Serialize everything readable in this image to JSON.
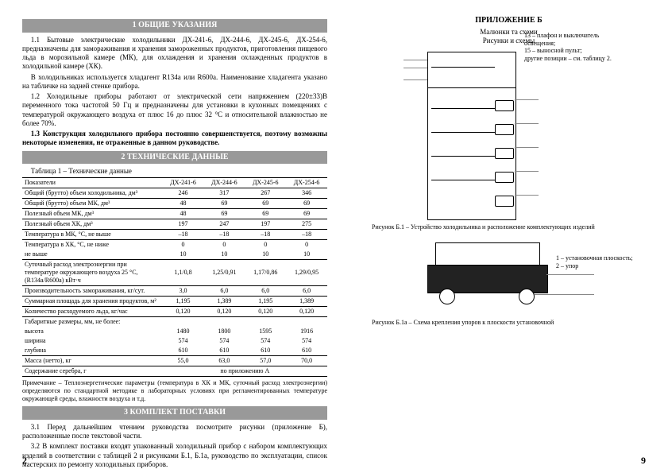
{
  "left": {
    "sec1_title": "1  ОБЩИЕ УКАЗАНИЯ",
    "p1": "1.1 Бытовые электрические холодильники ДХ-241-6, ДХ-244-6, ДХ-245-6, ДХ-254-6, предназначены для замораживания и хранения замороженных продуктов, приготовления пищевого льда в морозильной камере (МК), для охлаждения и хранения охлажденных продуктов в холодильной камере (ХК).",
    "p2": "В холодильниках используется хладагент R134a или R600a. Наименование хладагента указано на табличке на задней стенке прибора.",
    "p3": "1.2 Холодильные приборы работают от электрической сети напряжением (220±33)В переменного тока частотой 50 Гц и предназначены для установки в кухонных помещениях с температурой окружающего воздуха от плюс 16 до плюс 32 °С и относительной влажностью не более 70%.",
    "p4": "1.3 Конструкция холодильного прибора постоянно совершенствуется, поэтому возможны некоторые изменения, не отраженные в данном руководстве.",
    "sec2_title": "2  ТЕХНИЧЕСКИЕ ДАННЫЕ",
    "tbl_caption": "Таблица 1 – Технические данные",
    "cols": [
      "Показатели",
      "ДХ-241-6",
      "ДХ-244-6",
      "ДХ-245-6",
      "ДХ-254-6"
    ],
    "rows": [
      {
        "l": "Общий (брутто) объем холодильника, дм³",
        "v": [
          "246",
          "317",
          "267",
          "346"
        ],
        "b": 1
      },
      {
        "l": "Общий (брутто) объем МК, дм³",
        "v": [
          "48",
          "69",
          "69",
          "69"
        ],
        "b": 1
      },
      {
        "l": "Полезный объем МК, дм³",
        "v": [
          "48",
          "69",
          "69",
          "69"
        ],
        "b": 1
      },
      {
        "l": "Полезный объем ХК, дм³",
        "v": [
          "197",
          "247",
          "197",
          "275"
        ],
        "b": 1
      },
      {
        "l": "Температура в МК, °С, не выше",
        "v": [
          "–18",
          "–18",
          "–18",
          "–18"
        ],
        "b": 1
      },
      {
        "l": "Температура в ХК, °С, не ниже",
        "v": [
          "0",
          "0",
          "0",
          "0"
        ],
        "b": 0
      },
      {
        "l": "                                      не выше",
        "v": [
          "10",
          "10",
          "10",
          "10"
        ],
        "b": 1
      },
      {
        "l": "Суточный расход электроэнергии при температуре окружающего воздуха 25 °С, (R134a/R600a) кВт·ч",
        "v": [
          "1,1/0,8",
          "1,25/0,91",
          "1,17/0,86",
          "1,29/0,95"
        ],
        "b": 1
      },
      {
        "l": "Производительность замораживания, кг/сут.",
        "v": [
          "3,0",
          "6,0",
          "6,0",
          "6,0"
        ],
        "b": 1
      },
      {
        "l": "Суммарная площадь для хранения продуктов, м²",
        "v": [
          "1,195",
          "1,389",
          "1,195",
          "1,389"
        ],
        "b": 1
      },
      {
        "l": "Количество расходуемого льда, кг/час",
        "v": [
          "0,120",
          "0,120",
          "0,120",
          "0,120"
        ],
        "b": 1
      },
      {
        "l": "Габаритные размеры, мм, не более:",
        "v": [
          "",
          "",
          "",
          ""
        ],
        "b": 0
      },
      {
        "l": "        высота",
        "v": [
          "1480",
          "1800",
          "1595",
          "1916"
        ],
        "b": 0
      },
      {
        "l": "        ширина",
        "v": [
          "574",
          "574",
          "574",
          "574"
        ],
        "b": 0
      },
      {
        "l": "        глубина",
        "v": [
          "610",
          "610",
          "610",
          "610"
        ],
        "b": 1
      },
      {
        "l": "Масса (нетто), кг",
        "v": [
          "55,0",
          "63,0",
          "57,0",
          "70,0"
        ],
        "b": 1
      },
      {
        "l": "Содержание серебра, г",
        "v": [
          "по приложению А",
          "",
          "",
          ""
        ],
        "b": 1,
        "span": 1
      }
    ],
    "note": "Примечание – Теплоэнергетические параметры (температура в ХК и МК, суточный расход электроэнергии) определяются по стандартной методике в лабораторных условиях при регламентированных температуре окружающей среды, влажности воздуха и т.д.",
    "sec3_title": "3  КОМПЛЕКТ ПОСТАВКИ",
    "p5": "3.1 Перед дальнейшим чтением руководства посмотрите рисунки (приложение Б), расположенные после текстовой части.",
    "p6": "3.2 В комплект поставки входят упакованный холодильный прибор с набором комплектующих изделий в соответствии с таблицей 2 и рисунками Б.1, Б.1а, руководство по эксплуатации, список мастерских по ремонту холодильных приборов.",
    "pagenum": "2"
  },
  "right": {
    "app_title": "ПРИЛОЖЕНИЕ Б",
    "app_sub": "Малюнки та схеми\nРисунки и схемы",
    "fridge_note": "13 – плафон и выключатель освещения;\n15 – выносной пульт;\nдругие позиции – см. таблицу 2.",
    "fig1": "Рисунок Б.1 – Устройство холодильника и расположение комплектующих изделий",
    "base_note": "1 – установочная плоскость;\n2 – упор",
    "fig2": "Рисунок Б.1а – Схема крепления упоров к плоскости установочной",
    "pagenum": "9"
  }
}
